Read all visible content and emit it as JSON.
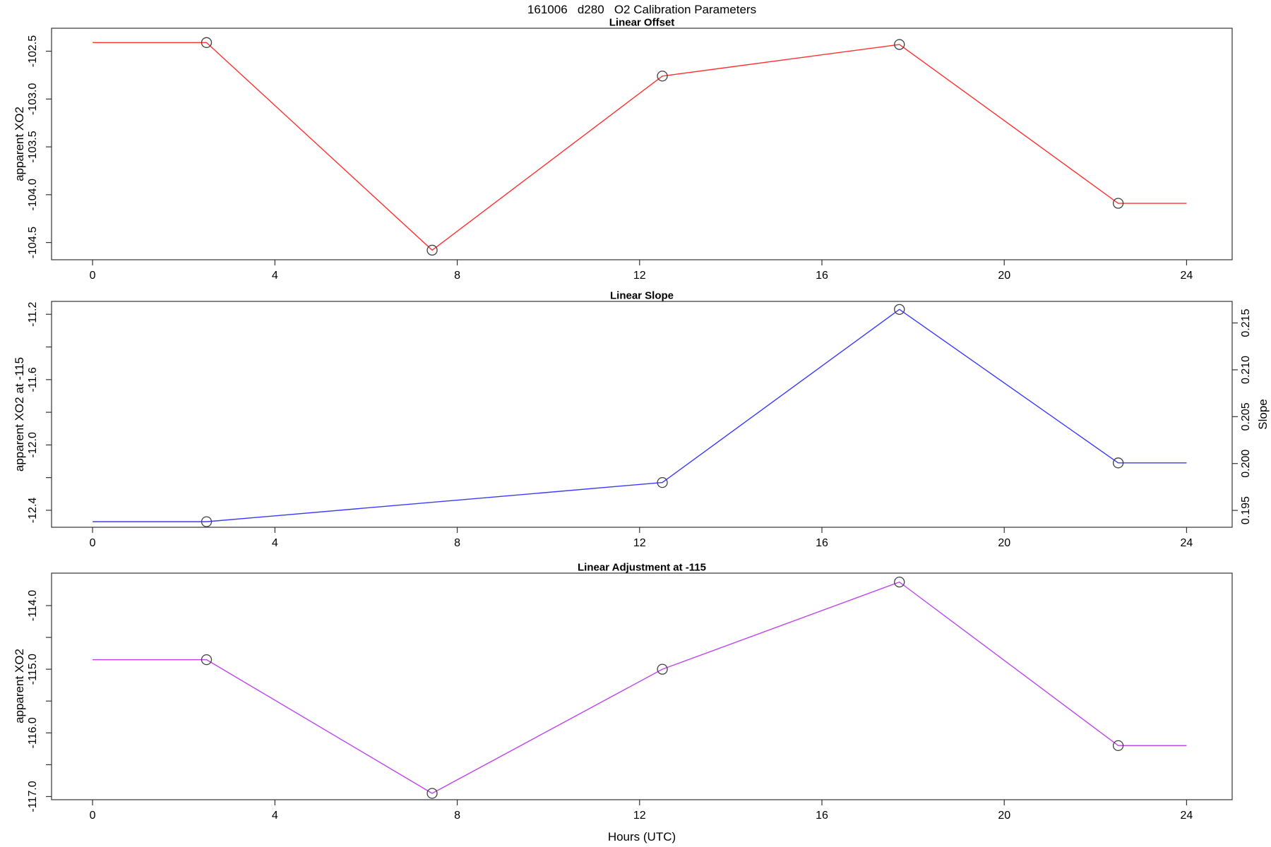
{
  "title": "161006   d280   O2 Calibration Parameters",
  "xlabel": "Hours (UTC)",
  "chart_data": [
    {
      "type": "line",
      "title": "Linear Offset",
      "ylabel": "apparent XO2",
      "color": "#ff3030",
      "marker_color": "#404040",
      "xlim": [
        -0.9,
        25.0
      ],
      "ylim": [
        -104.68,
        -102.26
      ],
      "xticks": [
        0,
        4,
        8,
        12,
        16,
        20,
        24
      ],
      "xtick_labels": [
        "0",
        "4",
        "8",
        "12",
        "16",
        "20",
        "24"
      ],
      "yticks": [
        -102.5,
        -103.0,
        -103.5,
        -104.0,
        -104.5
      ],
      "ytick_labels": [
        "-102.5",
        "-103.0",
        "-103.5",
        "-104.0",
        "-104.5"
      ],
      "line": {
        "x": [
          0,
          2.5,
          7.45,
          12.5,
          17.7,
          22.5,
          24
        ],
        "y": [
          -102.41,
          -102.41,
          -104.58,
          -102.76,
          -102.43,
          -104.09,
          -104.09
        ]
      },
      "markers": {
        "x": [
          2.5,
          7.45,
          12.5,
          17.7,
          22.5
        ],
        "y": [
          -102.41,
          -104.58,
          -102.76,
          -102.43,
          -104.09
        ]
      }
    },
    {
      "type": "line",
      "title": "Linear Slope",
      "ylabel": "apparent XO2 at -115",
      "color": "#3a3aff",
      "marker_color": "#404040",
      "xlim": [
        -0.9,
        25.0
      ],
      "ylim": [
        -12.504,
        -11.121
      ],
      "xticks": [
        0,
        4,
        8,
        12,
        16,
        20,
        24
      ],
      "xtick_labels": [
        "0",
        "4",
        "8",
        "12",
        "16",
        "20",
        "24"
      ],
      "yticks": [
        -11.2,
        -11.4,
        -11.6,
        -11.8,
        -12.0,
        -12.2,
        -12.4
      ],
      "ytick_labels": [
        "-11.2",
        "",
        "-11.6",
        "",
        "-12.0",
        "",
        "-12.4"
      ],
      "right_axis": {
        "label": "Slope",
        "lim": [
          0.1932,
          0.2173
        ],
        "ticks": [
          0.195,
          0.2,
          0.205,
          0.21,
          0.215
        ],
        "tick_labels": [
          "0.195",
          "0.200",
          "0.205",
          "0.210",
          "0.215"
        ],
        "series_values": [
          0.194,
          0.198,
          0.216,
          0.2
        ]
      },
      "line": {
        "x": [
          0,
          2.5,
          12.5,
          17.7,
          22.5,
          24
        ],
        "y": [
          -12.47,
          -12.47,
          -12.23,
          -11.17,
          -12.11,
          -12.11
        ]
      },
      "markers": {
        "x": [
          2.5,
          12.5,
          17.7,
          22.5
        ],
        "y": [
          -12.47,
          -12.23,
          -11.17,
          -12.11
        ]
      }
    },
    {
      "type": "line",
      "title": "Linear Adjustment at -115",
      "ylabel": "apparent XO2",
      "color": "#bf44ef",
      "marker_color": "#404040",
      "xlim": [
        -0.9,
        25.0
      ],
      "ylim": [
        -117.05,
        -113.49
      ],
      "xticks": [
        0,
        4,
        8,
        12,
        16,
        20,
        24
      ],
      "xtick_labels": [
        "0",
        "4",
        "8",
        "12",
        "16",
        "20",
        "24"
      ],
      "yticks": [
        -114.0,
        -114.5,
        -115.0,
        -115.5,
        -116.0,
        -116.5,
        -117.0
      ],
      "ytick_labels": [
        "-114.0",
        "",
        "-115.0",
        "",
        "-116.0",
        "",
        "-117.0"
      ],
      "line": {
        "x": [
          0,
          2.5,
          7.45,
          12.5,
          17.7,
          22.5,
          24
        ],
        "y": [
          -114.85,
          -114.85,
          -116.95,
          -115.0,
          -113.63,
          -116.2,
          -116.2
        ]
      },
      "markers": {
        "x": [
          2.5,
          7.45,
          12.5,
          17.7,
          22.5
        ],
        "y": [
          -114.85,
          -116.95,
          -115.0,
          -113.63,
          -116.2
        ]
      }
    }
  ],
  "style": {
    "axis_color": "#333333",
    "text_color": "#000000"
  }
}
